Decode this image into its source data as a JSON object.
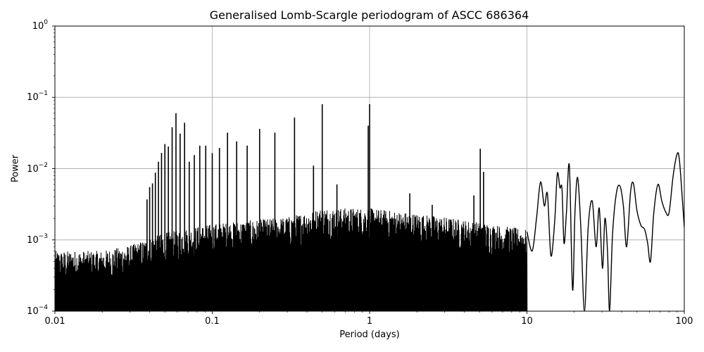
{
  "chart_data": {
    "type": "line",
    "title": "Generalised Lomb-Scargle periodogram of ASCC 686364",
    "xlabel": "Period (days)",
    "ylabel": "Power",
    "xscale": "log",
    "yscale": "log",
    "xlim": [
      0.01,
      100
    ],
    "ylim": [
      0.0001,
      1
    ],
    "grid": true,
    "legend": null,
    "xticks": [
      {
        "value": 0.01,
        "label": "0.01"
      },
      {
        "value": 0.1,
        "label": "0.1"
      },
      {
        "value": 1,
        "label": "1"
      },
      {
        "value": 10,
        "label": "10"
      },
      {
        "value": 100,
        "label": "100"
      }
    ],
    "yticks": [
      {
        "value": 1,
        "base": "10",
        "exp": "0"
      },
      {
        "value": 0.1,
        "base": "10",
        "exp": "−1"
      },
      {
        "value": 0.01,
        "base": "10",
        "exp": "−2"
      },
      {
        "value": 0.001,
        "base": "10",
        "exp": "−3"
      },
      {
        "value": 0.0001,
        "base": "10",
        "exp": "−4"
      }
    ],
    "noise_floor": [
      {
        "period": 0.01,
        "power": 0.0005
      },
      {
        "period": 0.02,
        "power": 0.0005
      },
      {
        "period": 0.03,
        "power": 0.0006
      },
      {
        "period": 0.05,
        "power": 0.0009
      },
      {
        "period": 0.1,
        "power": 0.0012
      },
      {
        "period": 0.3,
        "power": 0.0015
      },
      {
        "period": 0.5,
        "power": 0.002
      },
      {
        "period": 1.0,
        "power": 0.002
      },
      {
        "period": 3.0,
        "power": 0.0015
      },
      {
        "period": 10.0,
        "power": 0.001
      }
    ],
    "alias_peaks": [
      {
        "period": 0.0385,
        "power": 0.0037
      },
      {
        "period": 0.04,
        "power": 0.0055
      },
      {
        "period": 0.0417,
        "power": 0.0062
      },
      {
        "period": 0.0435,
        "power": 0.0088
      },
      {
        "period": 0.0455,
        "power": 0.0125
      },
      {
        "period": 0.0476,
        "power": 0.0166
      },
      {
        "period": 0.05,
        "power": 0.0221
      },
      {
        "period": 0.0526,
        "power": 0.0204
      },
      {
        "period": 0.0556,
        "power": 0.038
      },
      {
        "period": 0.0588,
        "power": 0.06
      },
      {
        "period": 0.0625,
        "power": 0.031
      },
      {
        "period": 0.0667,
        "power": 0.044
      },
      {
        "period": 0.0714,
        "power": 0.0125
      },
      {
        "period": 0.0769,
        "power": 0.0155
      },
      {
        "period": 0.0833,
        "power": 0.021
      },
      {
        "period": 0.0909,
        "power": 0.021
      },
      {
        "period": 0.1,
        "power": 0.0165
      },
      {
        "period": 0.1111,
        "power": 0.0195
      },
      {
        "period": 0.125,
        "power": 0.032
      },
      {
        "period": 0.1429,
        "power": 0.024
      },
      {
        "period": 0.1667,
        "power": 0.021
      },
      {
        "period": 0.2,
        "power": 0.036
      },
      {
        "period": 0.25,
        "power": 0.032
      },
      {
        "period": 0.3333,
        "power": 0.052
      },
      {
        "period": 0.5,
        "power": 0.08
      },
      {
        "period": 0.44,
        "power": 0.011
      },
      {
        "period": 0.62,
        "power": 0.006
      },
      {
        "period": 1.0,
        "power": 0.08
      },
      {
        "period": 0.98,
        "power": 0.04
      },
      {
        "period": 1.8,
        "power": 0.0045
      },
      {
        "period": 2.5,
        "power": 0.0031
      },
      {
        "period": 4.6,
        "power": 0.0042
      },
      {
        "period": 5.05,
        "power": 0.019
      },
      {
        "period": 5.3,
        "power": 0.009
      }
    ],
    "long_period_curve": [
      {
        "period": 10.0,
        "power": 0.0013
      },
      {
        "period": 10.8,
        "power": 0.0007
      },
      {
        "period": 11.5,
        "power": 0.002
      },
      {
        "period": 12.2,
        "power": 0.0065
      },
      {
        "period": 12.9,
        "power": 0.003
      },
      {
        "period": 13.5,
        "power": 0.0044
      },
      {
        "period": 14.2,
        "power": 0.0006
      },
      {
        "period": 15.0,
        "power": 0.0018
      },
      {
        "period": 15.6,
        "power": 0.0085
      },
      {
        "period": 16.2,
        "power": 0.0054
      },
      {
        "period": 16.7,
        "power": 0.0052
      },
      {
        "period": 17.2,
        "power": 0.0009
      },
      {
        "period": 17.8,
        "power": 0.0023
      },
      {
        "period": 18.6,
        "power": 0.011
      },
      {
        "period": 19.5,
        "power": 0.0002
      },
      {
        "period": 20.2,
        "power": 0.0025
      },
      {
        "period": 21.0,
        "power": 0.0075
      },
      {
        "period": 22.0,
        "power": 0.0015
      },
      {
        "period": 23.2,
        "power": 0.0001
      },
      {
        "period": 24.5,
        "power": 0.0015
      },
      {
        "period": 26.0,
        "power": 0.0035
      },
      {
        "period": 27.5,
        "power": 0.0008
      },
      {
        "period": 28.8,
        "power": 0.0028
      },
      {
        "period": 30.2,
        "power": 0.0004
      },
      {
        "period": 31.3,
        "power": 0.002
      },
      {
        "period": 32.5,
        "power": 0.0007
      },
      {
        "period": 33.5,
        "power": 0.0001
      },
      {
        "period": 35.0,
        "power": 0.0012
      },
      {
        "period": 37.0,
        "power": 0.0045
      },
      {
        "period": 39.0,
        "power": 0.0057
      },
      {
        "period": 41.0,
        "power": 0.003
      },
      {
        "period": 43.0,
        "power": 0.0008
      },
      {
        "period": 45.5,
        "power": 0.0046
      },
      {
        "period": 47.5,
        "power": 0.0062
      },
      {
        "period": 50.0,
        "power": 0.0026
      },
      {
        "period": 53.0,
        "power": 0.0016
      },
      {
        "period": 56.0,
        "power": 0.0014
      },
      {
        "period": 58.5,
        "power": 0.0009
      },
      {
        "period": 61.0,
        "power": 0.0005
      },
      {
        "period": 64.0,
        "power": 0.0024
      },
      {
        "period": 68.0,
        "power": 0.006
      },
      {
        "period": 72.0,
        "power": 0.0035
      },
      {
        "period": 76.0,
        "power": 0.0025
      },
      {
        "period": 80.0,
        "power": 0.0024
      },
      {
        "period": 85.0,
        "power": 0.008
      },
      {
        "period": 90.0,
        "power": 0.016
      },
      {
        "period": 93.0,
        "power": 0.0135
      },
      {
        "period": 97.0,
        "power": 0.004
      },
      {
        "period": 100.0,
        "power": 0.0015
      }
    ]
  }
}
